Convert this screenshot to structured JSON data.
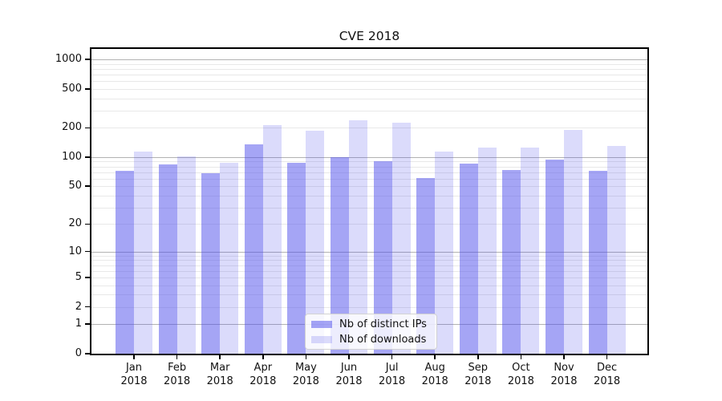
{
  "title": "CVE 2018",
  "chart_data": {
    "type": "bar",
    "title": "CVE 2018",
    "categories": [
      "Jan",
      "Feb",
      "Mar",
      "Apr",
      "May",
      "Jun",
      "Jul",
      "Aug",
      "Sep",
      "Oct",
      "Nov",
      "Dec"
    ],
    "category_year": "2018",
    "series": [
      {
        "name": "Nb of distinct IPs",
        "color": "rgba(75,75,235,0.5)",
        "values": [
          72,
          84,
          68,
          135,
          88,
          100,
          90,
          61,
          85,
          74,
          94,
          72
        ]
      },
      {
        "name": "Nb of downloads",
        "color": "rgba(75,75,235,0.2)",
        "values": [
          113,
          102,
          88,
          214,
          188,
          240,
          226,
          114,
          125,
          126,
          190,
          131
        ]
      }
    ],
    "yscale": "symlog (log1p)",
    "ylim": [
      0,
      1280
    ],
    "yticks_labeled": [
      0,
      1,
      2,
      5,
      10,
      20,
      50,
      100,
      200,
      500,
      1000
    ],
    "yticks_major_grid": [
      1,
      10,
      100,
      1000
    ],
    "yticks_minor_grid": [
      2,
      3,
      4,
      5,
      6,
      7,
      8,
      9,
      20,
      30,
      40,
      50,
      60,
      70,
      80,
      90,
      200,
      300,
      400,
      500,
      600,
      700,
      800,
      900
    ],
    "grid": true,
    "legend_position": "bottom-center"
  },
  "colors": {
    "axis_spine": "#000000",
    "grid_major": "#b2b2b2",
    "grid_minor": "#e8e8e8",
    "legend_border": "#d2d2d2"
  }
}
